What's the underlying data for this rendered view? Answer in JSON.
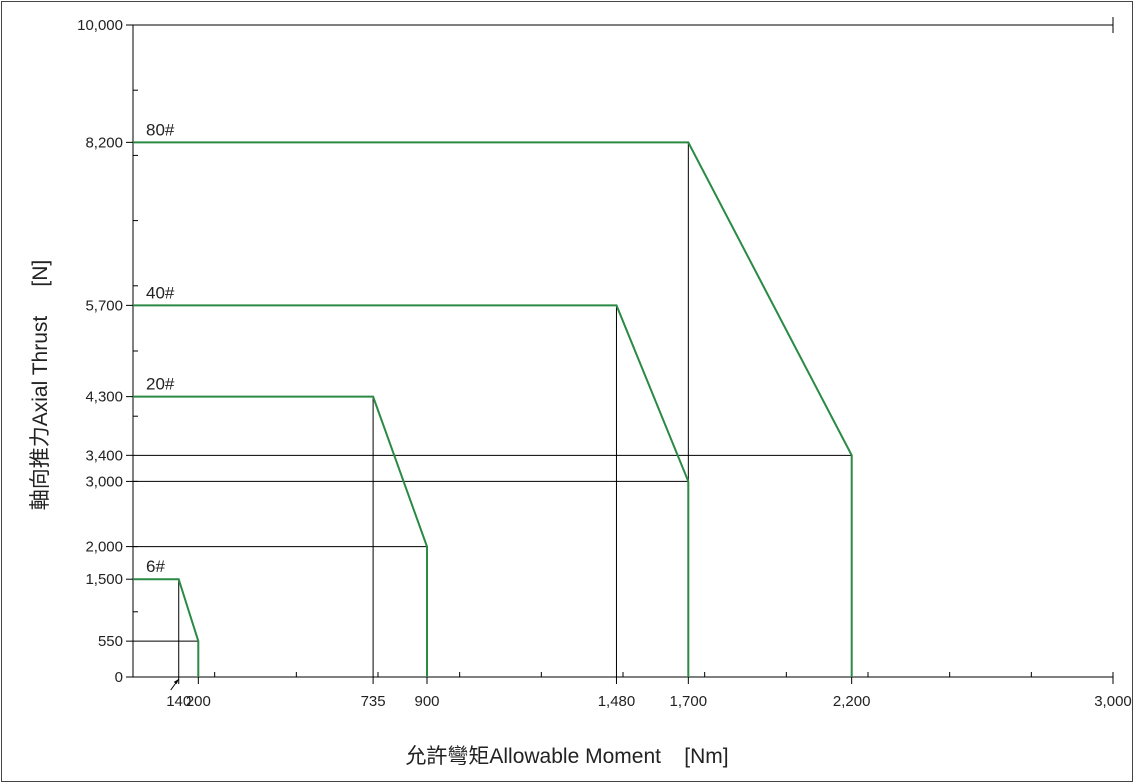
{
  "chart_data": {
    "type": "line",
    "xlabel": "允許彎矩Allowable Moment    [Nm]",
    "ylabel": "軸向推力Axial Thrust     [N]",
    "xlim": [
      0,
      3000
    ],
    "ylim": [
      0,
      10000
    ],
    "x_tick_labels": [
      {
        "value": 140,
        "label": "140"
      },
      {
        "value": 200,
        "label": "200"
      },
      {
        "value": 735,
        "label": "735"
      },
      {
        "value": 900,
        "label": "900"
      },
      {
        "value": 1480,
        "label": "1,480"
      },
      {
        "value": 1700,
        "label": "1,700"
      },
      {
        "value": 2200,
        "label": "2,200"
      },
      {
        "value": 3000,
        "label": "3,000"
      }
    ],
    "y_tick_labels": [
      {
        "value": 0,
        "label": "0"
      },
      {
        "value": 550,
        "label": "550"
      },
      {
        "value": 1500,
        "label": "1,500"
      },
      {
        "value": 2000,
        "label": "2,000"
      },
      {
        "value": 3000,
        "label": "3,000"
      },
      {
        "value": 3400,
        "label": "3,400"
      },
      {
        "value": 4300,
        "label": "4,300"
      },
      {
        "value": 5700,
        "label": "5,700"
      },
      {
        "value": 8200,
        "label": "8,200"
      },
      {
        "value": 10000,
        "label": "10,000"
      }
    ],
    "x_minor_ticks": [
      0,
      250,
      500,
      750,
      1000,
      1250,
      1500,
      1750,
      2000,
      2250,
      2500,
      2750,
      3000
    ],
    "y_minor_ticks": [
      0,
      1000,
      2000,
      3000,
      4000,
      5000,
      6000,
      7000,
      8000,
      9000,
      10000
    ],
    "series": [
      {
        "name": "6#",
        "points": [
          [
            0,
            1500
          ],
          [
            140,
            1500
          ],
          [
            200,
            550
          ],
          [
            200,
            0
          ]
        ]
      },
      {
        "name": "20#",
        "points": [
          [
            0,
            4300
          ],
          [
            735,
            4300
          ],
          [
            900,
            2000
          ],
          [
            900,
            0
          ]
        ]
      },
      {
        "name": "40#",
        "points": [
          [
            0,
            5700
          ],
          [
            1480,
            5700
          ],
          [
            1700,
            3000
          ],
          [
            1700,
            0
          ]
        ]
      },
      {
        "name": "80#",
        "points": [
          [
            0,
            8200
          ],
          [
            1700,
            8200
          ],
          [
            2200,
            3400
          ],
          [
            2200,
            0
          ]
        ]
      }
    ],
    "reference_lines": [
      {
        "type": "h",
        "y": 550,
        "x_to": 200
      },
      {
        "type": "v",
        "x": 140,
        "y_to": 1500
      },
      {
        "type": "h",
        "y": 2000,
        "x_to": 900
      },
      {
        "type": "v",
        "x": 735,
        "y_to": 4300
      },
      {
        "type": "h",
        "y": 3000,
        "x_to": 1700
      },
      {
        "type": "v",
        "x": 1480,
        "y_to": 5700
      },
      {
        "type": "h",
        "y": 3400,
        "x_to": 2200
      },
      {
        "type": "v",
        "x": 1700,
        "y_to": 8200
      }
    ],
    "line_color": "#2a8a44",
    "reference_color": "#000000",
    "grid": false
  }
}
